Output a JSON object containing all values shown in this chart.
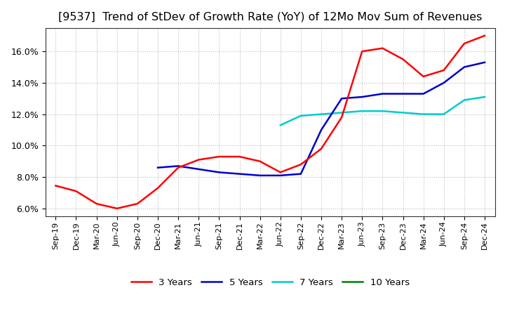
{
  "title": "[9537]  Trend of StDev of Growth Rate (YoY) of 12Mo Mov Sum of Revenues",
  "ylim": [
    0.055,
    0.175
  ],
  "yticks": [
    0.06,
    0.08,
    0.1,
    0.12,
    0.14,
    0.16
  ],
  "x_labels": [
    "Sep-19",
    "Dec-19",
    "Mar-20",
    "Jun-20",
    "Sep-20",
    "Dec-20",
    "Mar-21",
    "Jun-21",
    "Sep-21",
    "Dec-21",
    "Mar-22",
    "Jun-22",
    "Sep-22",
    "Dec-22",
    "Mar-23",
    "Jun-23",
    "Sep-23",
    "Dec-23",
    "Mar-24",
    "Jun-24",
    "Sep-24",
    "Dec-24"
  ],
  "series_3y": [
    0.0745,
    0.071,
    0.063,
    0.06,
    0.063,
    0.073,
    0.086,
    0.091,
    0.093,
    0.093,
    0.09,
    0.083,
    0.088,
    0.098,
    0.118,
    0.16,
    0.162,
    0.155,
    0.144,
    0.148,
    0.165,
    0.17
  ],
  "series_5y_x": [
    5,
    6,
    7,
    8,
    9,
    10,
    11,
    12,
    13,
    14,
    15,
    16,
    17,
    18,
    19,
    20,
    21
  ],
  "series_5y_v": [
    0.086,
    0.087,
    0.085,
    0.083,
    0.082,
    0.081,
    0.081,
    0.082,
    0.11,
    0.13,
    0.131,
    0.133,
    0.133,
    0.133,
    0.14,
    0.15,
    0.153
  ],
  "series_7y_x": [
    11,
    12,
    13,
    14,
    15,
    16,
    17,
    18,
    19,
    20,
    21
  ],
  "series_7y_v": [
    0.113,
    0.119,
    0.12,
    0.121,
    0.122,
    0.122,
    0.121,
    0.12,
    0.12,
    0.129,
    0.131
  ],
  "color_3y": "#FF0000",
  "color_5y": "#0000CC",
  "color_7y": "#00CCCC",
  "color_10y": "#008000",
  "background_color": "#FFFFFF",
  "plot_bg_color": "#FFFFFF",
  "grid_color": "#BBBBBB",
  "title_fontsize": 11.5,
  "legend_fontsize": 9.5,
  "tick_fontsize": 8,
  "ytick_fontsize": 9
}
